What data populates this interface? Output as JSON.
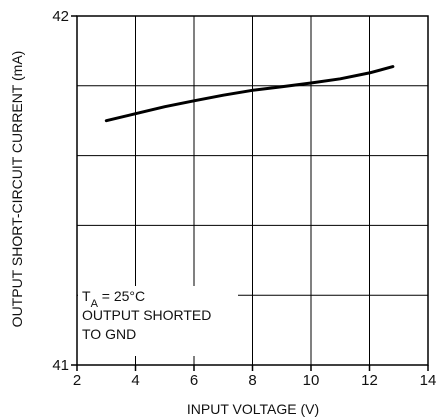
{
  "chart_data": {
    "type": "line",
    "xlabel": "INPUT VOLTAGE (V)",
    "ylabel": "OUTPUT SHORT-CIRCUIT CURRENT (mA)",
    "xlim": [
      2,
      14
    ],
    "ylim": [
      41,
      42
    ],
    "xticks": [
      2,
      4,
      6,
      8,
      10,
      12,
      14
    ],
    "xtick_labels": [
      "2",
      "4",
      "6",
      "8",
      "10",
      "12",
      "14"
    ],
    "yticks": [
      41,
      42
    ],
    "ytick_labels": [
      "41",
      "42"
    ],
    "grid": true,
    "y_gridlines": [
      41.2,
      41.4,
      41.6,
      41.8
    ],
    "series": [
      {
        "x": [
          3.0,
          4.0,
          5.0,
          6.0,
          7.0,
          8.0,
          9.0,
          10.0,
          11.0,
          12.0,
          12.8
        ],
        "y": [
          41.7,
          41.72,
          41.74,
          41.757,
          41.773,
          41.787,
          41.797,
          41.808,
          41.82,
          41.837,
          41.855
        ]
      }
    ],
    "annotation": {
      "subscript_base": "T",
      "subscript": "A",
      "condition": " = 25°C",
      "lines": [
        "OUTPUT SHORTED",
        "TO GND"
      ]
    },
    "line_color": "#000000"
  }
}
